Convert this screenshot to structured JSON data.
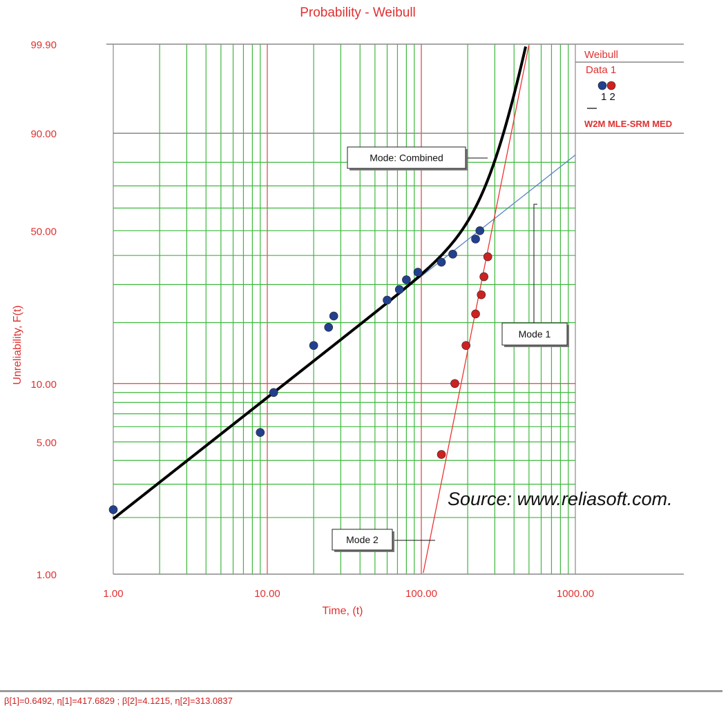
{
  "chart_data": {
    "type": "scatter",
    "title": "Probability - Weibull",
    "xlabel": "Time, (t)",
    "ylabel": "Unreliability, F(t)",
    "x_scale": "log",
    "y_scale": "weibull",
    "xlim": [
      1,
      1000
    ],
    "ylim": [
      1,
      99.9
    ],
    "grid": true,
    "x_ticks": [
      {
        "value": 1,
        "label": "1.00"
      },
      {
        "value": 10,
        "label": "10.00"
      },
      {
        "value": 100,
        "label": "100.00"
      },
      {
        "value": 1000,
        "label": "1000.00"
      }
    ],
    "y_ticks": [
      {
        "value": 1,
        "label": "1.00"
      },
      {
        "value": 5,
        "label": "5.00"
      },
      {
        "value": 10,
        "label": "10.00"
      },
      {
        "value": 50,
        "label": "50.00"
      },
      {
        "value": 90,
        "label": "90.00"
      },
      {
        "value": 99.9,
        "label": "99.90"
      }
    ],
    "series": [
      {
        "name": "1",
        "color": "#23408e",
        "points": [
          {
            "x": 1.0,
            "y": 2.2
          },
          {
            "x": 9.0,
            "y": 5.6
          },
          {
            "x": 11.0,
            "y": 9.0
          },
          {
            "x": 20.0,
            "y": 15.5
          },
          {
            "x": 25.0,
            "y": 19.0
          },
          {
            "x": 27.0,
            "y": 21.5
          },
          {
            "x": 60.0,
            "y": 25.5
          },
          {
            "x": 72.0,
            "y": 28.5
          },
          {
            "x": 80.0,
            "y": 31.5
          },
          {
            "x": 95.0,
            "y": 34.0
          },
          {
            "x": 135.0,
            "y": 37.5
          },
          {
            "x": 160.0,
            "y": 40.5
          },
          {
            "x": 225.0,
            "y": 46.5
          },
          {
            "x": 240.0,
            "y": 50.0
          }
        ]
      },
      {
        "name": "2",
        "color": "#cc2222",
        "points": [
          {
            "x": 135.0,
            "y": 4.3
          },
          {
            "x": 165.0,
            "y": 10.0
          },
          {
            "x": 195.0,
            "y": 15.5
          },
          {
            "x": 225.0,
            "y": 22.0
          },
          {
            "x": 245.0,
            "y": 27.0
          },
          {
            "x": 255.0,
            "y": 32.5
          },
          {
            "x": 270.0,
            "y": 39.5
          }
        ]
      }
    ],
    "fits": [
      {
        "id": "mode-1-line",
        "color": "#5b84c4",
        "beta": 0.6492,
        "eta": 417.6829,
        "x_range": [
          1,
          1000
        ]
      },
      {
        "id": "mode-2-line",
        "color": "#ee3333",
        "beta": 4.1215,
        "eta": 313.0837,
        "x_range": [
          100,
          1000
        ]
      },
      {
        "id": "combined-curve",
        "color": "#000000",
        "beta": 0.6492,
        "eta": 417.6829,
        "beta2": 4.1215,
        "eta2": 313.0837,
        "x_range": [
          1,
          1000
        ]
      }
    ],
    "annotations": [
      {
        "text": "Mode: Combined"
      },
      {
        "text": "Mode 1"
      },
      {
        "text": "Mode 2"
      }
    ],
    "legend": {
      "position": "top-right",
      "title_line1": "Weibull",
      "title_line2": "Data 1",
      "markers_label": "1 2",
      "fit_label": "W2M MLE-SRM MED"
    }
  },
  "source_note": "Source: www.reliasoft.com.",
  "footer": "β[1]=0.6492, η[1]=417.6829 ; β[2]=4.1215, η[2]=313.0837"
}
